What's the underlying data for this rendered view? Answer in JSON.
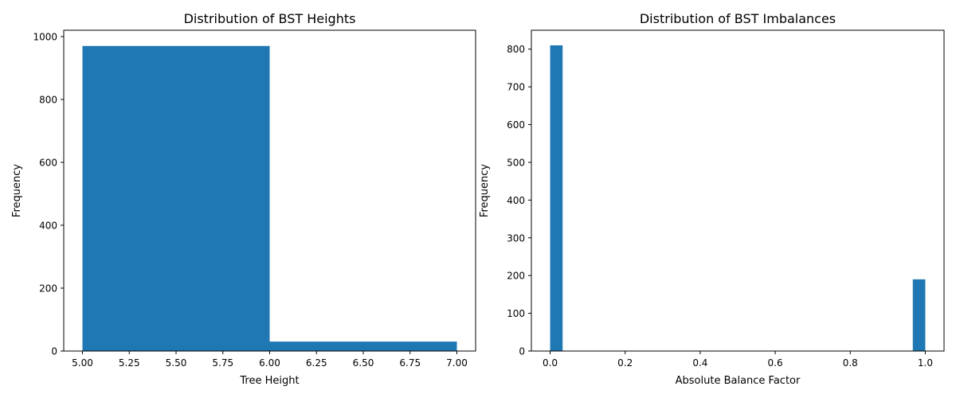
{
  "chart_data": [
    {
      "type": "bar",
      "title": "Distribution of BST Heights",
      "xlabel": "Tree Height",
      "ylabel": "Frequency",
      "bar_color": "#1f77b4",
      "xlim": [
        4.9,
        7.1
      ],
      "ylim": [
        0,
        1020
      ],
      "xticks": [
        5.0,
        5.25,
        5.5,
        5.75,
        6.0,
        6.25,
        6.5,
        6.75,
        7.0
      ],
      "xtick_labels": [
        "5.00",
        "5.25",
        "5.50",
        "5.75",
        "6.00",
        "6.25",
        "6.50",
        "6.75",
        "7.00"
      ],
      "yticks": [
        0,
        200,
        400,
        600,
        800,
        1000
      ],
      "ytick_labels": [
        "0",
        "200",
        "400",
        "600",
        "800",
        "1000"
      ],
      "bins": [
        {
          "x0": 5.0,
          "x1": 6.0,
          "value": 970
        },
        {
          "x0": 6.0,
          "x1": 7.0,
          "value": 30
        }
      ],
      "grid": false,
      "legend": false
    },
    {
      "type": "bar",
      "title": "Distribution of BST Imbalances",
      "xlabel": "Absolute Balance Factor",
      "ylabel": "Frequency",
      "bar_color": "#1f77b4",
      "xlim": [
        -0.05,
        1.05
      ],
      "ylim": [
        0,
        850
      ],
      "xticks": [
        0.0,
        0.2,
        0.4,
        0.6,
        0.8,
        1.0
      ],
      "xtick_labels": [
        "0.0",
        "0.2",
        "0.4",
        "0.6",
        "0.8",
        "1.0"
      ],
      "yticks": [
        0,
        100,
        200,
        300,
        400,
        500,
        600,
        700,
        800
      ],
      "ytick_labels": [
        "0",
        "100",
        "200",
        "300",
        "400",
        "500",
        "600",
        "700",
        "800"
      ],
      "bins": [
        {
          "x0": 0.0,
          "x1": 0.0333,
          "value": 810
        },
        {
          "x0": 0.9667,
          "x1": 1.0,
          "value": 190
        }
      ],
      "grid": false,
      "legend": false
    }
  ]
}
